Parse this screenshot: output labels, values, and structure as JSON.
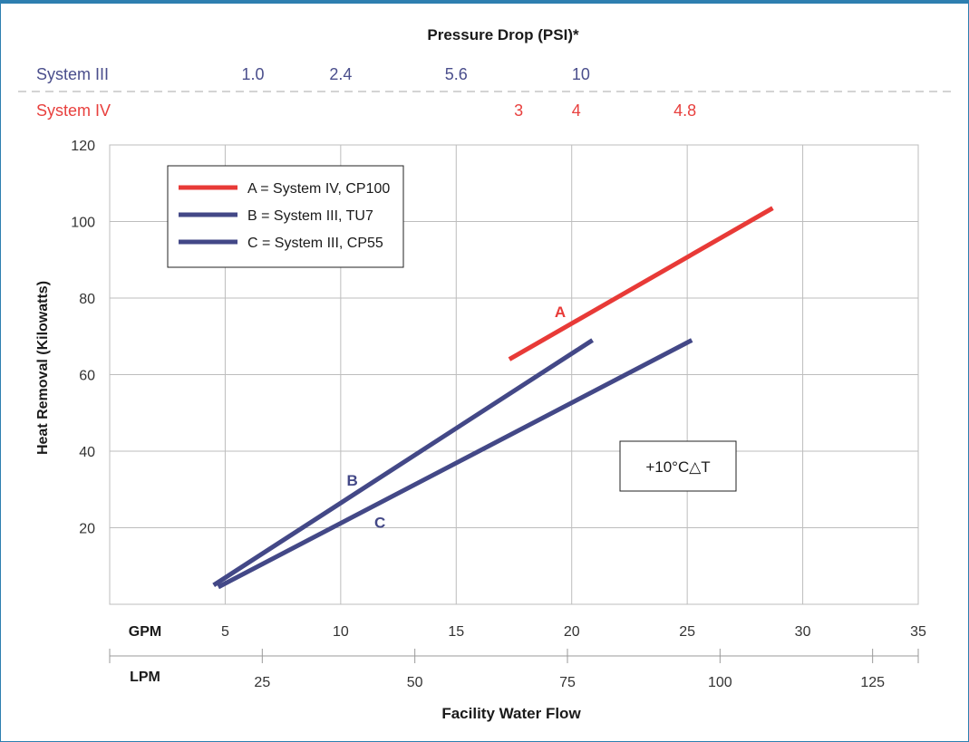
{
  "chart_data": {
    "type": "line",
    "title": "Pressure Drop (PSI)*",
    "xlabel": "Facility Water Flow",
    "ylabel": "Heat Removal (Kilowatts)",
    "xlim": [
      0,
      35
    ],
    "ylim": [
      0,
      120
    ],
    "y_ticks": [
      20,
      40,
      60,
      80,
      100,
      120
    ],
    "gpm_axis": {
      "label": "GPM",
      "ticks": [
        5,
        10,
        15,
        20,
        25,
        30,
        35
      ]
    },
    "lpm_axis": {
      "label": "LPM",
      "ticks": [
        25,
        50,
        75,
        100,
        125
      ],
      "gpm_per_lpm": 0.2642
    },
    "pressure_rows": [
      {
        "label": "System III",
        "color": "#4a4e8c",
        "ticks": [
          {
            "label": "1.0",
            "gpm": 6.2
          },
          {
            "label": "2.4",
            "gpm": 10
          },
          {
            "label": "5.6",
            "gpm": 15
          },
          {
            "label": "10",
            "gpm": 20.4
          }
        ]
      },
      {
        "label": "System IV",
        "color": "#e8403e",
        "ticks": [
          {
            "label": "3",
            "gpm": 17.7
          },
          {
            "label": "4",
            "gpm": 20.2
          },
          {
            "label": "4.8",
            "gpm": 24.9
          }
        ]
      }
    ],
    "series": [
      {
        "name": "A = System IV, CP100",
        "tag": "A",
        "color": "#e83a37",
        "x": [
          17.3,
          28.7
        ],
        "y": [
          64,
          103.5
        ],
        "tag_pos": {
          "x": 19.5,
          "y": 75
        }
      },
      {
        "name": "B = System III, TU7",
        "tag": "B",
        "color": "#434887",
        "x": [
          4.5,
          20.9
        ],
        "y": [
          5,
          69
        ],
        "tag_pos": {
          "x": 10.5,
          "y": 31
        }
      },
      {
        "name": "C = System III, CP55",
        "tag": "C",
        "color": "#434887",
        "x": [
          4.7,
          25.2
        ],
        "y": [
          4.5,
          69
        ],
        "tag_pos": {
          "x": 11.7,
          "y": 20
        }
      }
    ],
    "annotation": "+10°C△T",
    "grid": true,
    "legend_position": "top-left"
  }
}
